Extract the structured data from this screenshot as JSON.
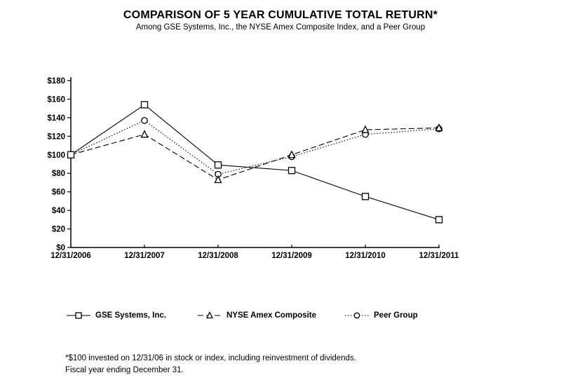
{
  "page": {
    "title": "COMPARISON OF 5 YEAR CUMULATIVE TOTAL RETURN*",
    "subtitle": "Among GSE Systems, Inc., the NYSE Amex Composite Index, and a Peer Group"
  },
  "chart_data": {
    "type": "line",
    "title": "COMPARISON OF 5 YEAR CUMULATIVE TOTAL RETURN*",
    "subtitle": "Among GSE Systems, Inc., the NYSE Amex Composite Index, and a Peer Group",
    "x": [
      "12/31/2006",
      "12/31/2007",
      "12/31/2008",
      "12/31/2009",
      "12/31/2010",
      "12/31/2011"
    ],
    "series": [
      {
        "name": "GSE Systems, Inc.",
        "marker": "square",
        "line_style": "solid",
        "values": [
          100,
          154,
          89,
          83,
          55,
          30
        ]
      },
      {
        "name": "NYSE Amex Composite",
        "marker": "triangle",
        "line_style": "dashed",
        "values": [
          100,
          122,
          73,
          100,
          127,
          129
        ]
      },
      {
        "name": "Peer Group",
        "marker": "circle",
        "line_style": "dotted",
        "values": [
          100,
          137,
          79,
          98,
          122,
          128
        ]
      }
    ],
    "ylim": [
      0,
      180
    ],
    "y_tick_step": 20,
    "y_tick_prefix": "$",
    "xlabel": "",
    "ylabel": "",
    "grid": false,
    "legend_position": "bottom"
  },
  "footnote": {
    "line1": "*$100 invested on 12/31/06 in stock or index, including reinvestment of dividends.",
    "line2": "Fiscal year ending December 31."
  },
  "colors": {
    "background": "#ffffff",
    "line": "#000000",
    "text": "#000000",
    "marker_fill": "#ffffff"
  }
}
